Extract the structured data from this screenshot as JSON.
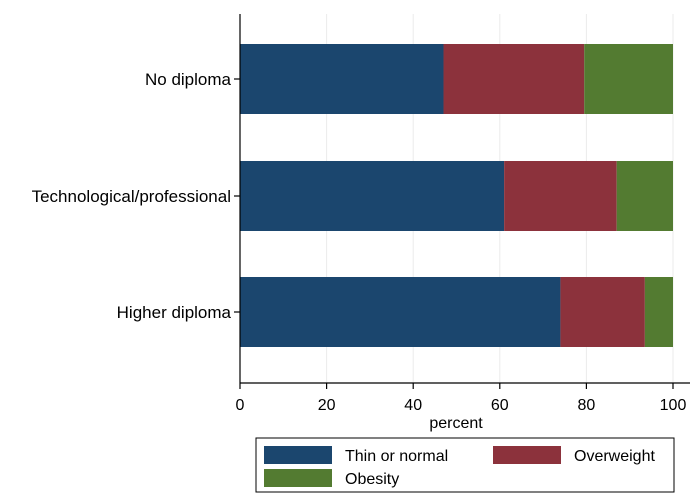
{
  "chart_data": {
    "type": "bar",
    "orientation": "horizontal",
    "stacked": true,
    "categories": [
      "No diploma",
      "Technological/professional",
      "Higher diploma"
    ],
    "series": [
      {
        "name": "Thin or normal",
        "color": "#1b466e",
        "values": [
          47,
          61,
          74
        ]
      },
      {
        "name": "Overweight",
        "color": "#8c323c",
        "values": [
          32.5,
          26,
          19.5
        ]
      },
      {
        "name": "Obesity",
        "color": "#537b31",
        "values": [
          20.5,
          13,
          6.5
        ]
      }
    ],
    "xlabel": "percent",
    "ylabel": "",
    "title": "",
    "xlim": [
      0,
      100
    ],
    "xticks": [
      0,
      20,
      40,
      60,
      80,
      100
    ],
    "grid": "vertical gridlines",
    "legend": {
      "position": "bottom",
      "columns": 2
    }
  }
}
